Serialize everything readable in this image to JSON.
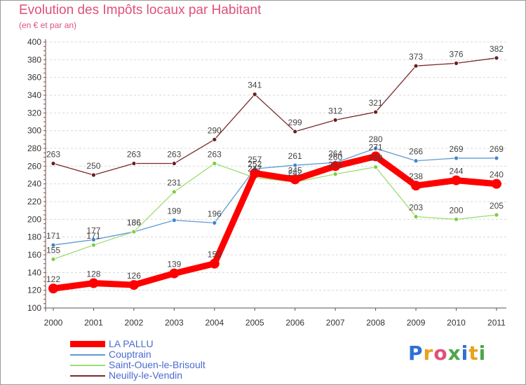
{
  "header": {
    "title": "Evolution des Impôts locaux par Habitant",
    "subtitle": "(en € et par an)"
  },
  "logo": {
    "text": "Proxiti",
    "colors": [
      "#2f6fd6",
      "#e8a21c",
      "#e0507a",
      "#4aa84a",
      "#2f6fd6",
      "#e8a21c",
      "#4aa84a"
    ]
  },
  "chart_data": {
    "type": "line",
    "title": "Evolution des Impôts locaux par Habitant",
    "subtitle": "(en € et par an)",
    "xlabel": "",
    "ylabel": "",
    "x": [
      "2000",
      "2001",
      "2002",
      "2003",
      "2004",
      "2005",
      "2006",
      "2007",
      "2008",
      "2009",
      "2010",
      "2011"
    ],
    "ylim": [
      100,
      400
    ],
    "yticks": [
      100,
      120,
      140,
      160,
      180,
      200,
      220,
      240,
      260,
      280,
      300,
      320,
      340,
      360,
      380,
      400
    ],
    "grid": "horizontal dashed",
    "legend_position": "bottom-left",
    "series": [
      {
        "name": "Neuilly-le-Vendin",
        "color": "#7a2a2a",
        "values": [
          263,
          250,
          263,
          263,
          290,
          341,
          299,
          312,
          321,
          373,
          376,
          382
        ]
      },
      {
        "name": "Couptrain",
        "color": "#5f9ad1",
        "values": [
          171,
          177,
          186,
          199,
          196,
          257,
          261,
          264,
          280,
          266,
          269,
          269
        ]
      },
      {
        "name": "Saint-Ouen-le-Brisoult",
        "color": "#9fdc6f",
        "values": [
          155,
          171,
          186,
          231,
          263,
          247,
          242,
          251,
          259,
          203,
          200,
          205
        ]
      },
      {
        "name": "LA PALLU",
        "color": "#ff0000",
        "values": [
          122,
          128,
          126,
          139,
          150,
          252,
          245,
          260,
          271,
          238,
          244,
          240
        ]
      }
    ],
    "legend_order": [
      "LA PALLU",
      "Couptrain",
      "Saint-Ouen-le-Brisoult",
      "Neuilly-le-Vendin"
    ]
  }
}
